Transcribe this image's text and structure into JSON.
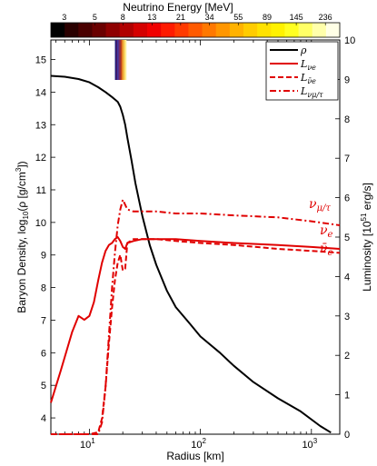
{
  "chart_data": {
    "type": "line",
    "xlabel": "Radius [km]",
    "xscale": "log",
    "xlim": [
      4.5,
      1800
    ],
    "x_tick_labels": [
      "10",
      "10",
      "10"
    ],
    "x_tick_exponents": [
      "1",
      "2",
      "3"
    ],
    "ylabel_left": "Baryon Density, log",
    "ylabel_left_sub": "10",
    "ylabel_left_tail": "(ρ  [g/cm",
    "ylabel_left_sup": "3",
    "ylabel_left_end": "])",
    "ylim_left": [
      3.5,
      15.6
    ],
    "yticks_left": [
      "4",
      "5",
      "6",
      "7",
      "8",
      "9",
      "10",
      "11",
      "12",
      "13",
      "14",
      "15"
    ],
    "ylabel_right": "Luminosity  [10",
    "ylabel_right_sup": "51",
    "ylabel_right_tail": " erg/s]",
    "ylim_right": [
      0,
      10
    ],
    "yticks_right": [
      "0",
      "1",
      "2",
      "3",
      "4",
      "5",
      "6",
      "7",
      "8",
      "9",
      "10"
    ],
    "colorbar": {
      "title": "Neutrino Energy [MeV]",
      "tick_labels": [
        "3",
        "5",
        "8",
        "13",
        "21",
        "34",
        "55",
        "89",
        "145",
        "236"
      ],
      "colors": [
        "#000000",
        "#2a0000",
        "#4a0000",
        "#6a0000",
        "#8e0000",
        "#b00000",
        "#d40000",
        "#f00000",
        "#ff1a00",
        "#ff3a00",
        "#ff5a00",
        "#ff7800",
        "#ff9600",
        "#ffb200",
        "#ffcc00",
        "#ffe200",
        "#fff200",
        "#ffff22",
        "#ffff66",
        "#ffffaa",
        "#ffffe6"
      ]
    },
    "spectrum_stripe_colors": [
      "#1a1a7a",
      "#4a1a6a",
      "#3a3aa0",
      "#6a2a80",
      "#8a3040",
      "#c04020",
      "#e08020",
      "#f0b040",
      "#f8d860",
      "#fff0a0"
    ],
    "legend": {
      "placement": "top-right",
      "entries": [
        {
          "label": "ρ",
          "color": "#000000",
          "dash": "solid"
        },
        {
          "label": "L",
          "sub": "νe",
          "color": "#e00000",
          "dash": "solid"
        },
        {
          "label": "L",
          "sub": "ν̄e",
          "color": "#e00000",
          "dash": "dashed"
        },
        {
          "label": "L",
          "sub": "νμ/τ",
          "color": "#e00000",
          "dash": "dashdot"
        }
      ]
    },
    "annotations": [
      "ν",
      "μ/τ",
      "ν",
      "e",
      "ν̄",
      "e"
    ],
    "series": [
      {
        "axis": "left",
        "color": "#000000",
        "dash": "solid",
        "x": [
          4.5,
          6,
          8,
          10,
          12,
          14,
          16,
          18,
          19,
          20,
          21,
          22,
          24,
          26,
          30,
          35,
          40,
          50,
          60,
          80,
          100,
          150,
          200,
          300,
          500,
          800,
          1200,
          1500
        ],
        "y": [
          14.5,
          14.47,
          14.4,
          14.3,
          14.15,
          14.0,
          13.85,
          13.7,
          13.55,
          13.3,
          13.0,
          12.6,
          11.9,
          11.2,
          10.2,
          9.3,
          8.7,
          7.9,
          7.4,
          6.9,
          6.5,
          6.0,
          5.6,
          5.1,
          4.6,
          4.2,
          3.75,
          3.55
        ]
      },
      {
        "axis": "right",
        "color": "#e00000",
        "dash": "solid",
        "x": [
          4.5,
          5.5,
          7,
          8,
          9,
          10,
          11,
          12,
          13,
          14,
          15,
          16,
          17,
          18,
          19,
          20,
          21,
          22,
          25,
          30,
          40,
          60,
          100,
          200,
          500,
          1000,
          1800
        ],
        "y": [
          0.8,
          1.6,
          2.6,
          3.0,
          2.9,
          3.0,
          3.35,
          3.9,
          4.35,
          4.65,
          4.8,
          4.85,
          4.95,
          5.0,
          4.9,
          4.75,
          4.7,
          4.85,
          4.9,
          4.95,
          4.95,
          4.95,
          4.9,
          4.85,
          4.8,
          4.75,
          4.7
        ]
      },
      {
        "axis": "right",
        "color": "#e00000",
        "dash": "dashed",
        "x": [
          4.5,
          10,
          12,
          13,
          14,
          15,
          16,
          17,
          18,
          19,
          20,
          21,
          22,
          25,
          30,
          40,
          60,
          100,
          200,
          500,
          1000,
          1800
        ],
        "y": [
          0,
          0,
          0.05,
          0.4,
          1.2,
          2.3,
          3.2,
          3.9,
          4.35,
          4.55,
          4.15,
          4.2,
          4.85,
          4.95,
          4.95,
          4.95,
          4.9,
          4.85,
          4.8,
          4.7,
          4.65,
          4.6
        ]
      },
      {
        "axis": "right",
        "color": "#e00000",
        "dash": "dashdot",
        "x": [
          4.5,
          12,
          13,
          14,
          15,
          16,
          17,
          18,
          19,
          20,
          22,
          25,
          30,
          40,
          60,
          100,
          200,
          500,
          1000,
          1800
        ],
        "y": [
          0,
          0,
          0.3,
          1.2,
          2.5,
          3.7,
          4.6,
          5.3,
          5.7,
          5.95,
          5.7,
          5.65,
          5.65,
          5.65,
          5.6,
          5.6,
          5.55,
          5.5,
          5.4,
          5.3
        ]
      }
    ]
  }
}
